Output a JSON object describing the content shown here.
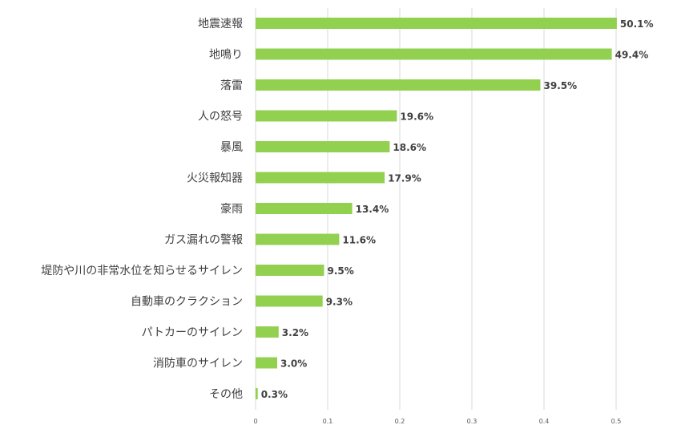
{
  "chart_data": {
    "type": "bar",
    "orientation": "horizontal",
    "categories": [
      "地震速報",
      "地鳴り",
      "落雷",
      "人の怒号",
      "暴風",
      "火災報知器",
      "豪雨",
      "ガス漏れの警報",
      "堤防や川の非常水位を知らせるサイレン",
      "自動車のクラクション",
      "パトカーのサイレン",
      "消防車のサイレン",
      "その他"
    ],
    "values": [
      0.501,
      0.494,
      0.395,
      0.196,
      0.186,
      0.179,
      0.134,
      0.116,
      0.095,
      0.093,
      0.032,
      0.03,
      0.003
    ],
    "data_labels": [
      "50.1%",
      "49.4%",
      "39.5%",
      "19.6%",
      "18.6%",
      "17.9%",
      "13.4%",
      "11.6%",
      "9.5%",
      "9.3%",
      "3.2%",
      "3.0%",
      "0.3%"
    ],
    "xlim": [
      0,
      0.5
    ],
    "xticks": [
      "0",
      "0.1",
      "0.2",
      "0.3",
      "0.4",
      "0.5"
    ],
    "grid": true,
    "legend": "none",
    "bar_color": "#92d050",
    "title": "",
    "xlabel": "",
    "ylabel": ""
  }
}
